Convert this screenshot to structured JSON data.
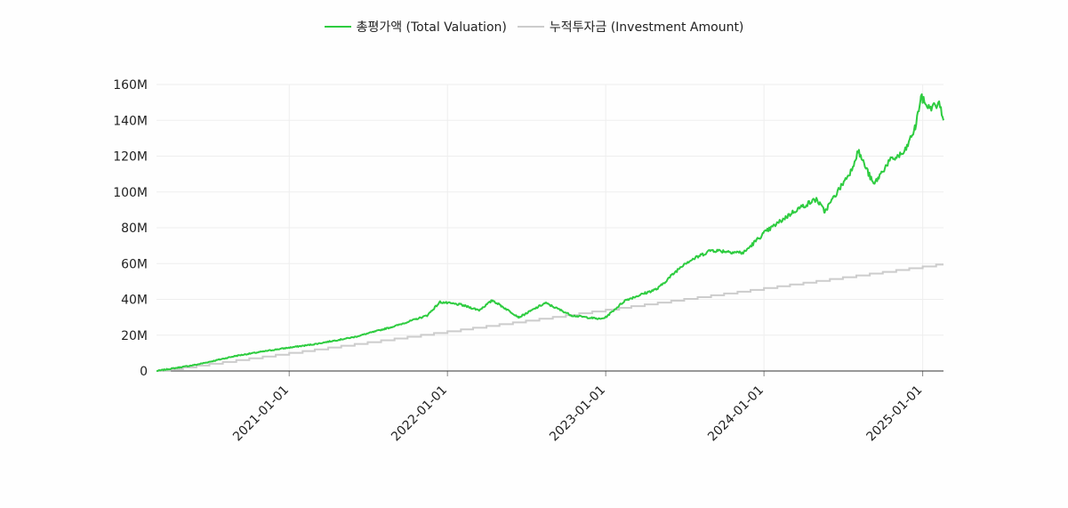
{
  "chart_data": {
    "type": "line",
    "legend": {
      "placement": "top-center",
      "entries": [
        "총평가액 (Total Valuation)",
        "누적투자금 (Investment Amount)"
      ]
    },
    "xaxis": {
      "type": "date",
      "range": [
        "2020-03-01",
        "2025-02-18"
      ],
      "ticks": [
        "2021-01-01",
        "2022-01-01",
        "2023-01-01",
        "2024-01-01",
        "2025-01-01"
      ],
      "tick_rotation": -45
    },
    "yaxis": {
      "range": [
        0,
        160000000
      ],
      "ticks": [
        0,
        20000000,
        40000000,
        60000000,
        80000000,
        100000000,
        120000000,
        140000000,
        160000000
      ],
      "tick_labels": [
        "0",
        "20M",
        "40M",
        "60M",
        "80M",
        "100M",
        "120M",
        "140M",
        "160M"
      ]
    },
    "grid": true,
    "series": [
      {
        "name": "총평가액 (Total Valuation)",
        "color": "#2ecc40",
        "points": [
          [
            "2020-03-01",
            0
          ],
          [
            "2020-06-01",
            3500000
          ],
          [
            "2020-09-01",
            8500000
          ],
          [
            "2020-12-01",
            12000000
          ],
          [
            "2021-03-01",
            15000000
          ],
          [
            "2021-06-01",
            19000000
          ],
          [
            "2021-09-01",
            25000000
          ],
          [
            "2021-11-15",
            31000000
          ],
          [
            "2021-12-15",
            38500000
          ],
          [
            "2022-02-01",
            37000000
          ],
          [
            "2022-03-15",
            34000000
          ],
          [
            "2022-04-15",
            39500000
          ],
          [
            "2022-06-15",
            30000000
          ],
          [
            "2022-08-15",
            38000000
          ],
          [
            "2022-10-15",
            31000000
          ],
          [
            "2022-12-20",
            29000000
          ],
          [
            "2023-01-01",
            30000000
          ],
          [
            "2023-02-15",
            39500000
          ],
          [
            "2023-05-01",
            46000000
          ],
          [
            "2023-07-01",
            60000000
          ],
          [
            "2023-09-01",
            67500000
          ],
          [
            "2023-11-15",
            66000000
          ],
          [
            "2024-01-01",
            77000000
          ],
          [
            "2024-03-15",
            90000000
          ],
          [
            "2024-05-01",
            96000000
          ],
          [
            "2024-05-20",
            89000000
          ],
          [
            "2024-07-20",
            112000000
          ],
          [
            "2024-08-05",
            123000000
          ],
          [
            "2024-09-10",
            104000000
          ],
          [
            "2024-10-15",
            117000000
          ],
          [
            "2024-11-20",
            122000000
          ],
          [
            "2024-12-15",
            136000000
          ],
          [
            "2024-12-28",
            153000000
          ],
          [
            "2025-01-15",
            147000000
          ],
          [
            "2025-02-10",
            149000000
          ],
          [
            "2025-02-18",
            140000000
          ]
        ]
      },
      {
        "name": "누적투자금 (Investment Amount)",
        "color": "#cccccc",
        "points": [
          [
            "2020-03-01",
            0
          ],
          [
            "2025-02-18",
            60000000
          ]
        ],
        "step": "monthly"
      }
    ]
  }
}
